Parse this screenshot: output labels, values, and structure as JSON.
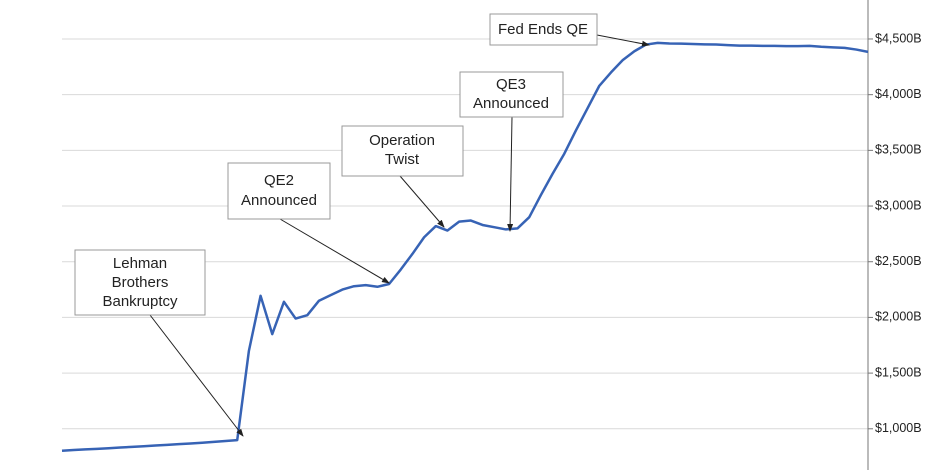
{
  "chart_data": {
    "type": "line",
    "series": [
      {
        "color": "#3763b5",
        "values": [
          803,
          810,
          815,
          820,
          825,
          832,
          838,
          843,
          850,
          856,
          862,
          868,
          875,
          882,
          890,
          898,
          1700,
          2194,
          1850,
          2140,
          1990,
          2020,
          2150,
          2200,
          2250,
          2280,
          2290,
          2275,
          2300,
          2430,
          2570,
          2720,
          2820,
          2780,
          2860,
          2870,
          2830,
          2810,
          2790,
          2800,
          2900,
          3100,
          3290,
          3470,
          3680,
          3880,
          4080,
          4200,
          4310,
          4390,
          4450,
          4465,
          4460,
          4458,
          4455,
          4452,
          4450,
          4445,
          4440,
          4440,
          4438,
          4438,
          4436,
          4436,
          4438,
          4430,
          4425,
          4420,
          4405,
          4384
        ]
      }
    ],
    "ylim": [
      630,
      4850
    ],
    "yticks": [
      {
        "value": 1000,
        "label": "$1,000B"
      },
      {
        "value": 1500,
        "label": "$1,500B"
      },
      {
        "value": 2000,
        "label": "$2,000B"
      },
      {
        "value": 2500,
        "label": "$2,500B"
      },
      {
        "value": 3000,
        "label": "$3,000B"
      },
      {
        "value": 3500,
        "label": "$3,500B"
      },
      {
        "value": 4000,
        "label": "$4,000B"
      },
      {
        "value": 4500,
        "label": "$4,500B"
      }
    ],
    "grid": true,
    "annotations": [
      {
        "lines": [
          "Lehman",
          "Brothers",
          "Bankruptcy"
        ]
      },
      {
        "lines": [
          "QE2",
          "Announced"
        ]
      },
      {
        "lines": [
          "Operation",
          "Twist"
        ]
      },
      {
        "lines": [
          "QE3",
          "Announced"
        ]
      },
      {
        "lines": [
          "Fed Ends QE"
        ]
      }
    ]
  }
}
